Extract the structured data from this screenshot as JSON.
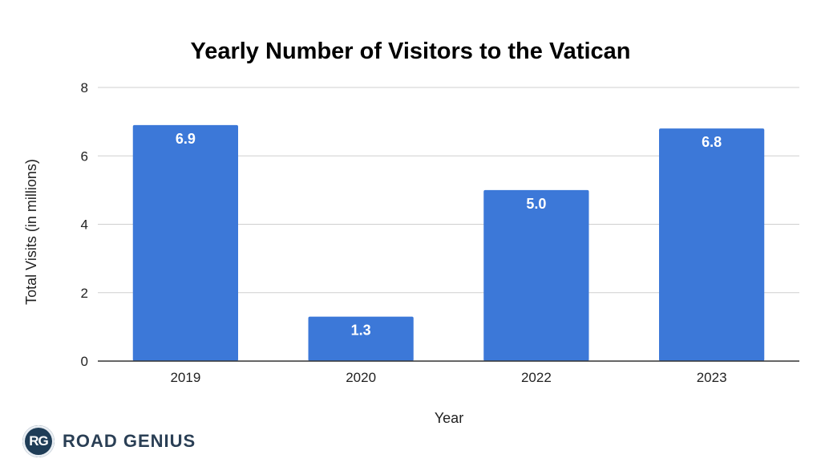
{
  "chart_data": {
    "type": "bar",
    "title": "Yearly Number of Visitors to the Vatican",
    "xlabel": "Year",
    "ylabel": "Total Visits (in millions)",
    "categories": [
      "2019",
      "2020",
      "2022",
      "2023"
    ],
    "values": [
      6.9,
      1.3,
      5.0,
      6.8
    ],
    "data_labels": [
      "6.9",
      "1.3",
      "5.0",
      "6.8"
    ],
    "ylim": [
      0,
      8
    ],
    "yticks": [
      0,
      2,
      4,
      6,
      8
    ],
    "grid": true,
    "legend": "none",
    "bar_color": "#3c78d8"
  },
  "branding": {
    "badge_text": "RG",
    "name": "ROAD GENIUS"
  }
}
